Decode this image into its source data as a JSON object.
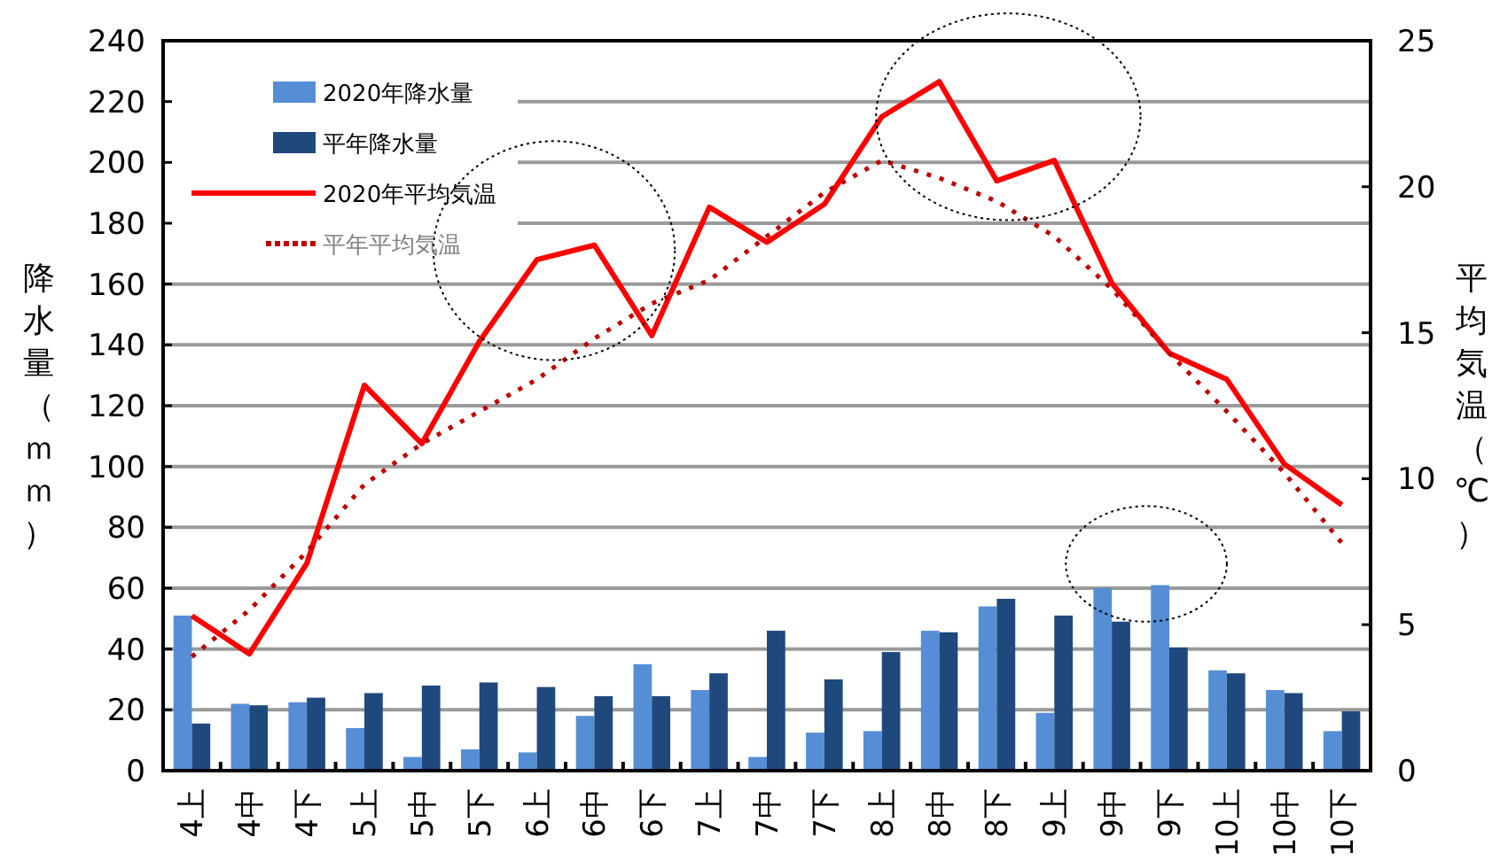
{
  "chart_data": {
    "type": "bar",
    "categories": [
      "4上",
      "4中",
      "4下",
      "5上",
      "5中",
      "5下",
      "6上",
      "6中",
      "6下",
      "7上",
      "7中",
      "7下",
      "8上",
      "8中",
      "8下",
      "9上",
      "9中",
      "9下",
      "10上",
      "10中",
      "10下"
    ],
    "ylabel": "降水量（ｍｍ）",
    "y2label": "平均気温（℃）",
    "ylim": [
      0,
      240
    ],
    "yticks": [
      0,
      20,
      40,
      60,
      80,
      100,
      120,
      140,
      160,
      180,
      200,
      220,
      240
    ],
    "y2lim": [
      0,
      25
    ],
    "y2ticks": [
      0,
      5,
      10,
      15,
      20,
      25
    ],
    "grid": "y",
    "legend": "top left",
    "series": [
      {
        "name": "2020年降水量",
        "color": "#558ed5",
        "values": [
          51,
          22,
          22.5,
          14,
          4.5,
          7,
          6,
          18,
          35,
          26.5,
          4.5,
          12.5,
          13,
          46,
          54,
          19,
          60,
          61,
          33,
          26.5,
          13
        ]
      },
      {
        "name": "平年降水量",
        "color": "#1f497d",
        "values": [
          15.5,
          21.5,
          24,
          25.5,
          28,
          29,
          27.5,
          24.5,
          24.5,
          32,
          46,
          30,
          39,
          45.5,
          56.5,
          51,
          49,
          40.5,
          32,
          25.5,
          19.5
        ]
      },
      {
        "name": "2020年平均気温",
        "type": "line",
        "axis": "y2",
        "line_style": "solid",
        "color": "#ff0000",
        "values": [
          5.3,
          4.0,
          7.1,
          13.2,
          11.2,
          14.7,
          17.5,
          18.0,
          14.9,
          19.3,
          18.1,
          19.4,
          22.4,
          23.6,
          20.2,
          20.9,
          16.7,
          14.3,
          13.4,
          10.5,
          9.1
        ]
      },
      {
        "name": "平年平均気温",
        "type": "line",
        "axis": "y2",
        "line_style": "dotted",
        "color": "#c00000",
        "values": [
          3.9,
          5.5,
          7.5,
          9.8,
          11.2,
          12.3,
          13.4,
          14.8,
          16.0,
          16.8,
          18.3,
          19.8,
          20.9,
          20.3,
          19.5,
          18.3,
          16.5,
          14.3,
          12.3,
          10.2,
          7.8
        ]
      }
    ]
  }
}
